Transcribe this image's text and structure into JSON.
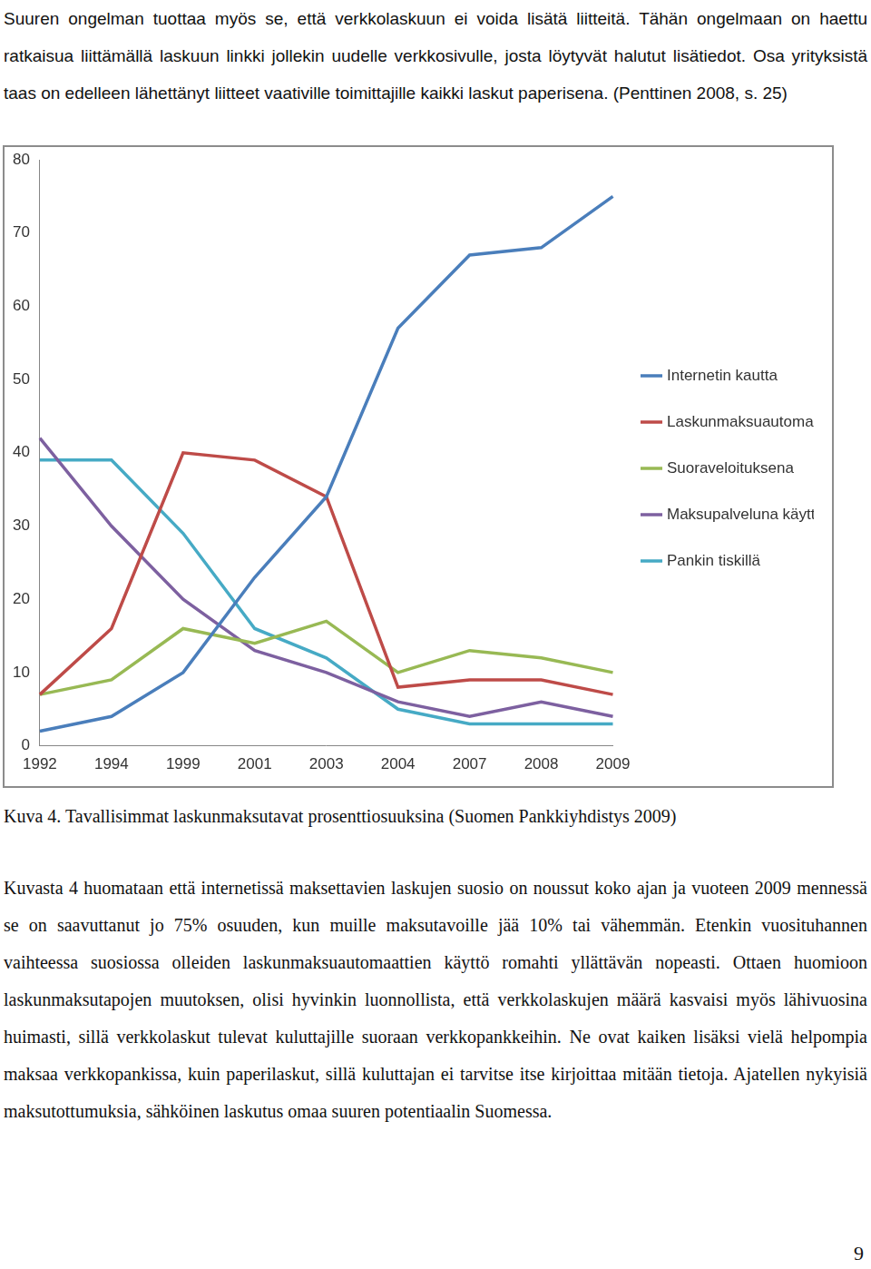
{
  "paragraph_top": "Suuren ongelman tuottaa myös se, että verkkolaskuun ei voida lisätä liitteitä. Tähän ongelmaan on haettu ratkaisua liittämällä laskuun linkki jollekin uudelle verkkosivulle, josta löytyvät halutut lisätiedot. Osa yrityksistä taas on edelleen lähettänyt liitteet vaativille toimittajille kaikki laskut paperisena. (Penttinen 2008, s. 25)",
  "chart_data": {
    "type": "line",
    "categories": [
      "1992",
      "1994",
      "1999",
      "2001",
      "2003",
      "2004",
      "2007",
      "2008",
      "2009"
    ],
    "series": [
      {
        "name": "Internetin kautta",
        "color": "#4a7ebb",
        "values": [
          2,
          4,
          10,
          23,
          34,
          57,
          67,
          68,
          75
        ]
      },
      {
        "name": "Laskunmaksuautomaatilla",
        "color": "#be4b48",
        "values": [
          7,
          16,
          40,
          39,
          34,
          8,
          9,
          9,
          7
        ]
      },
      {
        "name": "Suoraveloituksena",
        "color": "#98b954",
        "values": [
          7,
          9,
          16,
          14,
          17,
          10,
          13,
          12,
          10
        ]
      },
      {
        "name": "Maksupalveluna käyttäen maksupalvelukuorta",
        "color": "#7d60a0",
        "values": [
          42,
          30,
          20,
          13,
          10,
          6,
          4,
          6,
          4
        ]
      },
      {
        "name": "Pankin tiskillä",
        "color": "#46aac5",
        "values": [
          39,
          39,
          29,
          16,
          12,
          5,
          3,
          3,
          3
        ]
      }
    ],
    "ylim": [
      0,
      80
    ],
    "yticks": [
      0,
      10,
      20,
      30,
      40,
      50,
      60,
      70,
      80
    ],
    "grid": false,
    "legend": "right"
  },
  "caption": "Kuva 4. Tavallisimmat laskunmaksutavat prosenttiosuuksina (Suomen Pankkiyhdistys 2009)",
  "paragraph_bottom": "Kuvasta 4 huomataan että internetissä maksettavien laskujen suosio on noussut koko ajan ja vuoteen 2009 mennessä se on saavuttanut jo 75% osuuden, kun muille maksutavoille jää 10% tai vähemmän. Etenkin vuosituhannen vaihteessa suosiossa olleiden laskunmaksuautomaattien käyttö romahti yllättävän nopeasti. Ottaen huomioon laskunmaksutapojen muutoksen, olisi hyvinkin luonnollista, että verkkolaskujen määrä kasvaisi myös lähivuosina huimasti, sillä verkkolaskut tulevat kuluttajille suoraan verkkopankkeihin. Ne ovat kaiken lisäksi vielä helpompia maksaa verkkopankissa, kuin paperilaskut, sillä kuluttajan ei tarvitse itse kirjoittaa mitään tietoja. Ajatellen nykyisiä maksutottumuksia, sähköinen laskutus omaa suuren potentiaalin Suomessa.",
  "page_number": 9
}
